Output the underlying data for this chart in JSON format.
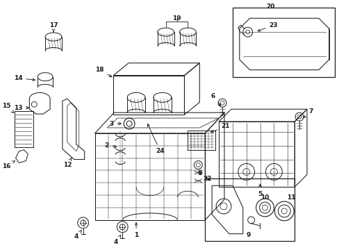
{
  "background_color": "#ffffff",
  "line_color": "#1a1a1a",
  "figsize": [
    4.89,
    3.6
  ],
  "dpi": 100,
  "label_fs": 6.5
}
